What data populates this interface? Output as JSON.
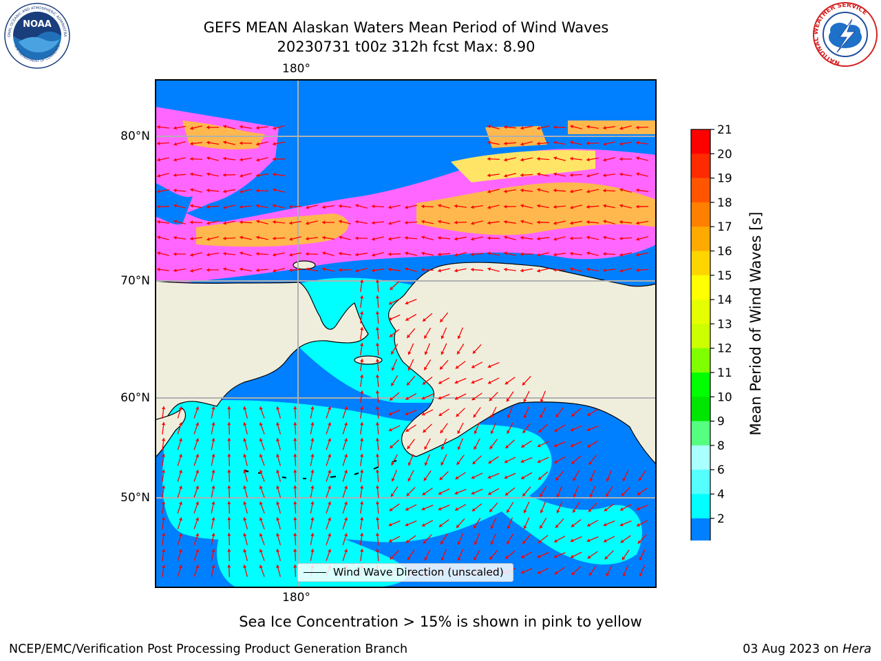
{
  "title": {
    "line1": "GEFS MEAN Alaskan Waters Mean Period of Wind Waves",
    "line2": "20230731 t00z 312h fcst   Max: 8.90"
  },
  "map": {
    "lon_label_top": "180°",
    "lon_label_bottom": "180°",
    "lat_labels": [
      "80°N",
      "70°N",
      "60°N",
      "50°N"
    ],
    "colors": {
      "land": "#efeedd",
      "coast": "#000000",
      "grid": "#b0b0b0",
      "ocean_2_4": "#0080ff",
      "ocean_4_6": "#00ffff",
      "ice_pink": "#ff66ff",
      "ice_orange": "#ffb84d",
      "ice_yellow": "#ffe466",
      "arrow": "#ff0000"
    },
    "legend_label": "Wind Wave Direction (unscaled)"
  },
  "colorbar": {
    "label": "Mean Period of Wind Waves [s]",
    "ticks": [
      "21",
      "20",
      "19",
      "18",
      "17",
      "16",
      "15",
      "14",
      "13",
      "12",
      "11",
      "10",
      "9",
      "8",
      "6",
      "4",
      "2"
    ],
    "colors": [
      "#ff0000",
      "#ff2a00",
      "#ff5500",
      "#ff8000",
      "#ffaa00",
      "#ffd500",
      "#ffff00",
      "#e6ff00",
      "#ccff00",
      "#80ff00",
      "#00ff00",
      "#00e600",
      "#55ff7f",
      "#aaffff",
      "#55ffff",
      "#00ffff",
      "#0080ff"
    ],
    "extend_color": "#0000ff"
  },
  "footer": {
    "note": "Sea Ice Concentration > 15% is shown in pink to yellow",
    "left": "NCEP/EMC/Verification Post Processing Product Generation Branch",
    "right_date": "03 Aug 2023 on",
    "right_machine": "Hera"
  },
  "logos": {
    "noaa_text": "NOAA",
    "noaa_ring_top": "NATIONAL OCEANIC AND ATMOSPHERIC ADMINISTRATION",
    "noaa_ring_bottom": "U.S. DEPARTMENT OF COMMERCE",
    "nws_ring": "NATIONAL WEATHER SERVICE"
  }
}
